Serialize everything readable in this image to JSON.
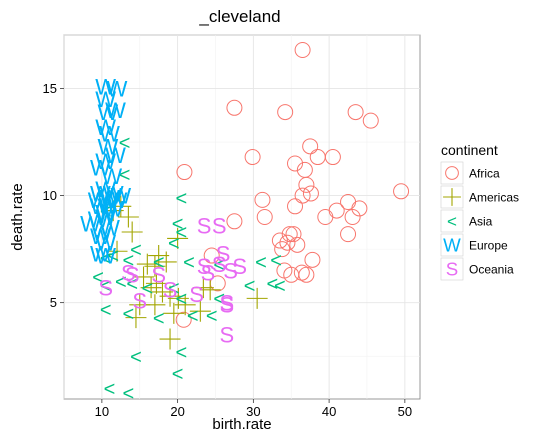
{
  "chart_data": {
    "type": "scatter",
    "title": "_cleveland",
    "xlabel": "birth.rate",
    "ylabel": "death.rate",
    "xlim": [
      5,
      52
    ],
    "ylim": [
      0.5,
      17.5
    ],
    "x_ticks": [
      10,
      20,
      30,
      40,
      50
    ],
    "y_ticks": [
      5,
      10,
      15
    ],
    "grid": true,
    "legend_title": "continent",
    "legend_position": "right",
    "series": [
      {
        "name": "Africa",
        "color": "#F8766D",
        "marker": "open-circle",
        "points": [
          [
            36.5,
            16.8
          ],
          [
            27.5,
            14.1
          ],
          [
            34.2,
            13.9
          ],
          [
            43.5,
            13.9
          ],
          [
            45.5,
            13.5
          ],
          [
            37.5,
            12.3
          ],
          [
            35.5,
            11.5
          ],
          [
            38.5,
            11.8
          ],
          [
            40.5,
            11.8
          ],
          [
            29.9,
            11.8
          ],
          [
            20.9,
            11.1
          ],
          [
            36.8,
            11.2
          ],
          [
            37.0,
            10.5
          ],
          [
            36.5,
            10.0
          ],
          [
            37.6,
            10.1
          ],
          [
            35.5,
            9.5
          ],
          [
            31.2,
            9.8
          ],
          [
            42.5,
            9.7
          ],
          [
            44.0,
            9.4
          ],
          [
            49.5,
            10.2
          ],
          [
            41.0,
            9.3
          ],
          [
            39.5,
            9.0
          ],
          [
            31.5,
            9.0
          ],
          [
            43.1,
            9.0
          ],
          [
            27.5,
            8.8
          ],
          [
            34.8,
            8.2
          ],
          [
            35.3,
            8.2
          ],
          [
            33.5,
            7.9
          ],
          [
            34.5,
            7.8
          ],
          [
            33.8,
            7.5
          ],
          [
            35.8,
            7.7
          ],
          [
            42.5,
            8.2
          ],
          [
            37.8,
            7.0
          ],
          [
            24.5,
            7.2
          ],
          [
            34.1,
            6.5
          ],
          [
            35.0,
            6.3
          ],
          [
            36.4,
            6.4
          ],
          [
            37.0,
            6.3
          ],
          [
            25.3,
            5.9
          ],
          [
            20.8,
            4.2
          ]
        ]
      },
      {
        "name": "Americas",
        "color": "#A3A500",
        "marker": "plus",
        "points": [
          [
            12.5,
            9.5
          ],
          [
            11.5,
            9.3
          ],
          [
            13.5,
            9.0
          ],
          [
            14.0,
            8.3
          ],
          [
            12.0,
            7.4
          ],
          [
            20.0,
            8.0
          ],
          [
            18.5,
            6.9
          ],
          [
            17.0,
            6.7
          ],
          [
            17.5,
            7.2
          ],
          [
            16.0,
            6.8
          ],
          [
            15.5,
            6.2
          ],
          [
            16.5,
            5.7
          ],
          [
            18.0,
            5.5
          ],
          [
            17.2,
            5.9
          ],
          [
            19.0,
            5.3
          ],
          [
            20.1,
            5.2
          ],
          [
            23.4,
            5.7
          ],
          [
            24.3,
            5.6
          ],
          [
            15.0,
            4.9
          ],
          [
            14.5,
            4.3
          ],
          [
            17.0,
            4.9
          ],
          [
            19.5,
            4.5
          ],
          [
            21.0,
            4.9
          ],
          [
            23.0,
            4.6
          ],
          [
            30.5,
            5.2
          ],
          [
            19.0,
            3.3
          ]
        ]
      },
      {
        "name": "Asia",
        "color": "#00BF7D",
        "marker": "<",
        "points": [
          [
            13.0,
            12.5
          ],
          [
            13.0,
            11.0
          ],
          [
            20.5,
            9.9
          ],
          [
            10.5,
            9.3
          ],
          [
            20.0,
            8.7
          ],
          [
            20.5,
            8.3
          ],
          [
            19.5,
            7.8
          ],
          [
            14.5,
            7.5
          ],
          [
            11.5,
            7.2
          ],
          [
            10.5,
            7.1
          ],
          [
            13.5,
            7.0
          ],
          [
            17.5,
            6.9
          ],
          [
            21.5,
            6.9
          ],
          [
            25.5,
            6.8
          ],
          [
            31.0,
            6.9
          ],
          [
            33.0,
            7.0
          ],
          [
            9.5,
            6.2
          ],
          [
            12.5,
            6.0
          ],
          [
            14.0,
            5.9
          ],
          [
            10.5,
            5.8
          ],
          [
            16.0,
            5.7
          ],
          [
            19.5,
            5.7
          ],
          [
            20.5,
            5.2
          ],
          [
            25.5,
            5.2
          ],
          [
            29.5,
            5.8
          ],
          [
            32.5,
            5.9
          ],
          [
            33.5,
            5.8
          ],
          [
            10.5,
            4.7
          ],
          [
            13.5,
            4.5
          ],
          [
            17.5,
            4.3
          ],
          [
            22.0,
            4.4
          ],
          [
            24.5,
            4.4
          ],
          [
            14.5,
            2.5
          ],
          [
            20.5,
            2.7
          ],
          [
            20.0,
            1.7
          ],
          [
            11.0,
            1.0
          ],
          [
            13.5,
            0.8
          ]
        ]
      },
      {
        "name": "Europe",
        "color": "#00B0F6",
        "marker": "W",
        "points": [
          [
            10.5,
            15.1
          ],
          [
            12.0,
            15.0
          ],
          [
            10.5,
            14.5
          ],
          [
            10.8,
            13.9
          ],
          [
            11.8,
            14.0
          ],
          [
            10.5,
            13.2
          ],
          [
            11.0,
            12.9
          ],
          [
            10.8,
            12.3
          ],
          [
            11.8,
            11.9
          ],
          [
            10.5,
            11.6
          ],
          [
            9.8,
            11.3
          ],
          [
            11.3,
            10.9
          ],
          [
            10.5,
            10.3
          ],
          [
            11.5,
            10.1
          ],
          [
            12.5,
            10.0
          ],
          [
            9.8,
            10.1
          ],
          [
            11.0,
            9.9
          ],
          [
            9.5,
            9.8
          ],
          [
            12.0,
            9.8
          ],
          [
            10.8,
            9.5
          ],
          [
            9.8,
            9.5
          ],
          [
            11.5,
            9.4
          ],
          [
            10.5,
            9.2
          ],
          [
            10.5,
            9.0
          ],
          [
            9.5,
            8.9
          ],
          [
            8.5,
            8.7
          ],
          [
            11.0,
            8.5
          ],
          [
            10.0,
            8.3
          ],
          [
            9.8,
            8.1
          ],
          [
            10.5,
            7.8
          ],
          [
            9.8,
            7.3
          ],
          [
            10.5,
            7.2
          ]
        ]
      },
      {
        "name": "Oceania",
        "color": "#E76BF3",
        "marker": "S",
        "points": [
          [
            23.5,
            8.6
          ],
          [
            25.5,
            8.6
          ],
          [
            26.0,
            7.3
          ],
          [
            25.5,
            6.8
          ],
          [
            23.5,
            6.7
          ],
          [
            24.0,
            6.4
          ],
          [
            27.0,
            6.5
          ],
          [
            28.2,
            6.7
          ],
          [
            17.5,
            6.3
          ],
          [
            13.5,
            6.4
          ],
          [
            14.0,
            6.3
          ],
          [
            10.5,
            5.7
          ],
          [
            19.0,
            5.6
          ],
          [
            22.5,
            5.4
          ],
          [
            15.0,
            5.1
          ],
          [
            26.5,
            5.0
          ],
          [
            26.5,
            4.9
          ],
          [
            26.5,
            3.5
          ]
        ]
      }
    ]
  }
}
